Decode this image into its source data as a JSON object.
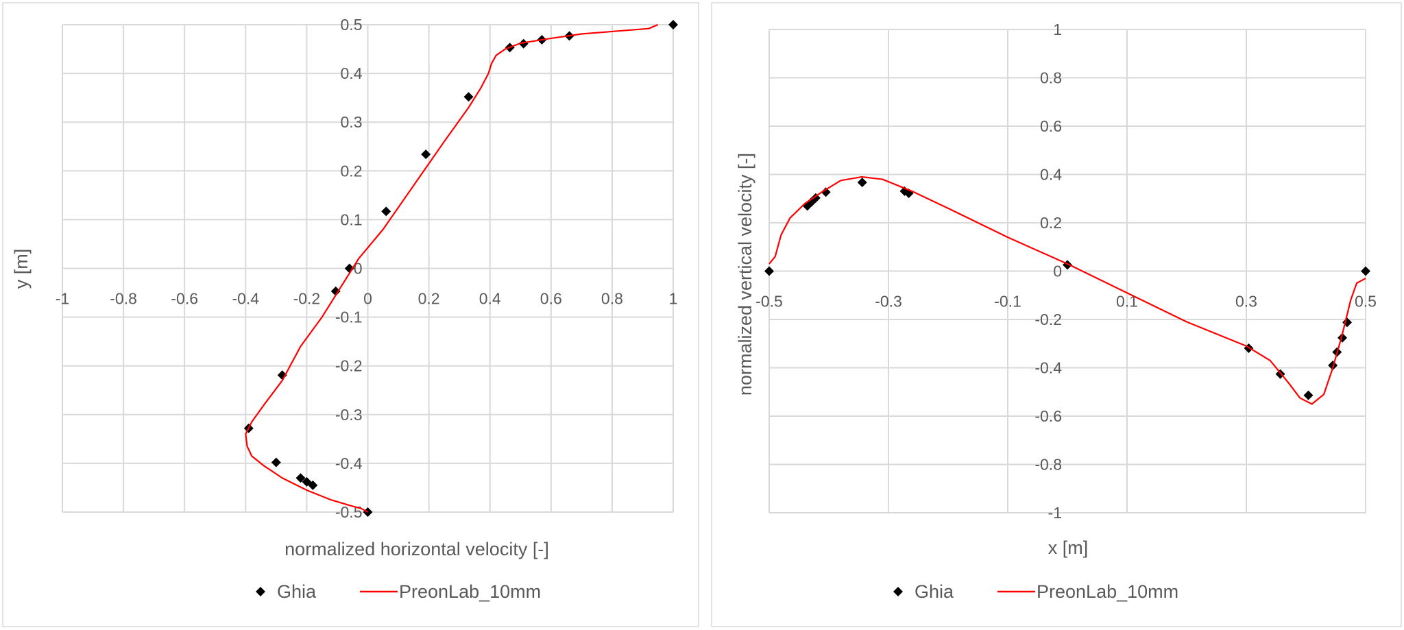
{
  "chart_data": [
    {
      "type": "scatter",
      "xlabel": "normalized horizontal velocity [-]",
      "ylabel": "y [m]",
      "xlim": [
        -1,
        1
      ],
      "ylim": [
        -0.5,
        0.5
      ],
      "xticks": [
        "-1",
        "-0.8",
        "-0.6",
        "-0.4",
        "-0.2",
        "0",
        "0.2",
        "0.4",
        "0.6",
        "0.8",
        "1"
      ],
      "yticks": [
        "-0.5",
        "-0.4",
        "-0.3",
        "-0.2",
        "-0.1",
        "0",
        "0.1",
        "0.2",
        "0.3",
        "0.4",
        "0.5"
      ],
      "grid": true,
      "legend": "bottom",
      "series": [
        {
          "name": "Ghia",
          "kind": "markers",
          "color": "#000000",
          "points": [
            [
              1,
              0.5
            ],
            [
              0.66,
              0.477
            ],
            [
              0.57,
              0.469
            ],
            [
              0.51,
              0.461
            ],
            [
              0.465,
              0.453
            ],
            [
              0.33,
              0.352
            ],
            [
              0.19,
              0.234
            ],
            [
              0.06,
              0.117
            ],
            [
              -0.06,
              0.0
            ],
            [
              -0.105,
              -0.047
            ],
            [
              -0.28,
              -0.219
            ],
            [
              -0.39,
              -0.328
            ],
            [
              -0.3,
              -0.398
            ],
            [
              -0.22,
              -0.43
            ],
            [
              -0.2,
              -0.438
            ],
            [
              -0.18,
              -0.445
            ],
            [
              0,
              -0.5
            ]
          ]
        },
        {
          "name": "PreonLab_10mm",
          "kind": "line",
          "color": "#ff0000",
          "points": [
            [
              0.95,
              0.5
            ],
            [
              0.92,
              0.492
            ],
            [
              0.8,
              0.486
            ],
            [
              0.7,
              0.481
            ],
            [
              0.6,
              0.472
            ],
            [
              0.5,
              0.462
            ],
            [
              0.45,
              0.45
            ],
            [
              0.42,
              0.437
            ],
            [
              0.405,
              0.42
            ],
            [
              0.395,
              0.4
            ],
            [
              0.37,
              0.37
            ],
            [
              0.33,
              0.33
            ],
            [
              0.25,
              0.26
            ],
            [
              0.15,
              0.17
            ],
            [
              0.05,
              0.08
            ],
            [
              -0.03,
              0.02
            ],
            [
              -0.08,
              -0.03
            ],
            [
              -0.15,
              -0.1
            ],
            [
              -0.22,
              -0.16
            ],
            [
              -0.28,
              -0.23
            ],
            [
              -0.34,
              -0.28
            ],
            [
              -0.38,
              -0.315
            ],
            [
              -0.4,
              -0.34
            ],
            [
              -0.395,
              -0.365
            ],
            [
              -0.38,
              -0.385
            ],
            [
              -0.34,
              -0.405
            ],
            [
              -0.28,
              -0.43
            ],
            [
              -0.2,
              -0.455
            ],
            [
              -0.12,
              -0.475
            ],
            [
              -0.05,
              -0.488
            ],
            [
              -0.02,
              -0.493
            ],
            [
              0,
              -0.5
            ]
          ]
        }
      ]
    },
    {
      "type": "scatter",
      "xlabel": "x [m]",
      "ylabel": "normalized vertical velocity [-]",
      "xlim": [
        -0.5,
        0.5
      ],
      "ylim": [
        -1,
        1
      ],
      "xticks": [
        "-0.5",
        "-0.3",
        "-0.1",
        "0.1",
        "0.3",
        "0.5"
      ],
      "yticks": [
        "-1",
        "-0.8",
        "-0.6",
        "-0.4",
        "-0.2",
        "0",
        "0.2",
        "0.4",
        "0.6",
        "0.8",
        "1"
      ],
      "grid": true,
      "legend": "bottom",
      "series": [
        {
          "name": "Ghia",
          "kind": "markers",
          "color": "#000000",
          "points": [
            [
              -0.5,
              0
            ],
            [
              -0.436,
              0.27
            ],
            [
              -0.429,
              0.286
            ],
            [
              -0.422,
              0.303
            ],
            [
              -0.405,
              0.327
            ],
            [
              -0.344,
              0.367
            ],
            [
              -0.273,
              0.331
            ],
            [
              -0.266,
              0.322
            ],
            [
              0.0,
              0.026
            ],
            [
              0.304,
              -0.319
            ],
            [
              0.357,
              -0.426
            ],
            [
              0.404,
              -0.514
            ],
            [
              0.445,
              -0.39
            ],
            [
              0.452,
              -0.335
            ],
            [
              0.461,
              -0.276
            ],
            [
              0.469,
              -0.212
            ],
            [
              0.5,
              0
            ]
          ]
        },
        {
          "name": "PreonLab_10mm",
          "kind": "line",
          "color": "#ff0000",
          "points": [
            [
              -0.5,
              0.03
            ],
            [
              -0.49,
              0.06
            ],
            [
              -0.48,
              0.15
            ],
            [
              -0.465,
              0.22
            ],
            [
              -0.44,
              0.28
            ],
            [
              -0.41,
              0.33
            ],
            [
              -0.38,
              0.375
            ],
            [
              -0.345,
              0.39
            ],
            [
              -0.31,
              0.38
            ],
            [
              -0.26,
              0.33
            ],
            [
              -0.2,
              0.26
            ],
            [
              -0.1,
              0.14
            ],
            [
              0,
              0.03
            ],
            [
              0.1,
              -0.09
            ],
            [
              0.2,
              -0.21
            ],
            [
              0.3,
              -0.31
            ],
            [
              0.34,
              -0.37
            ],
            [
              0.37,
              -0.46
            ],
            [
              0.39,
              -0.525
            ],
            [
              0.41,
              -0.55
            ],
            [
              0.43,
              -0.51
            ],
            [
              0.445,
              -0.4
            ],
            [
              0.46,
              -0.27
            ],
            [
              0.475,
              -0.12
            ],
            [
              0.485,
              -0.05
            ],
            [
              0.5,
              -0.03
            ]
          ]
        }
      ]
    }
  ]
}
